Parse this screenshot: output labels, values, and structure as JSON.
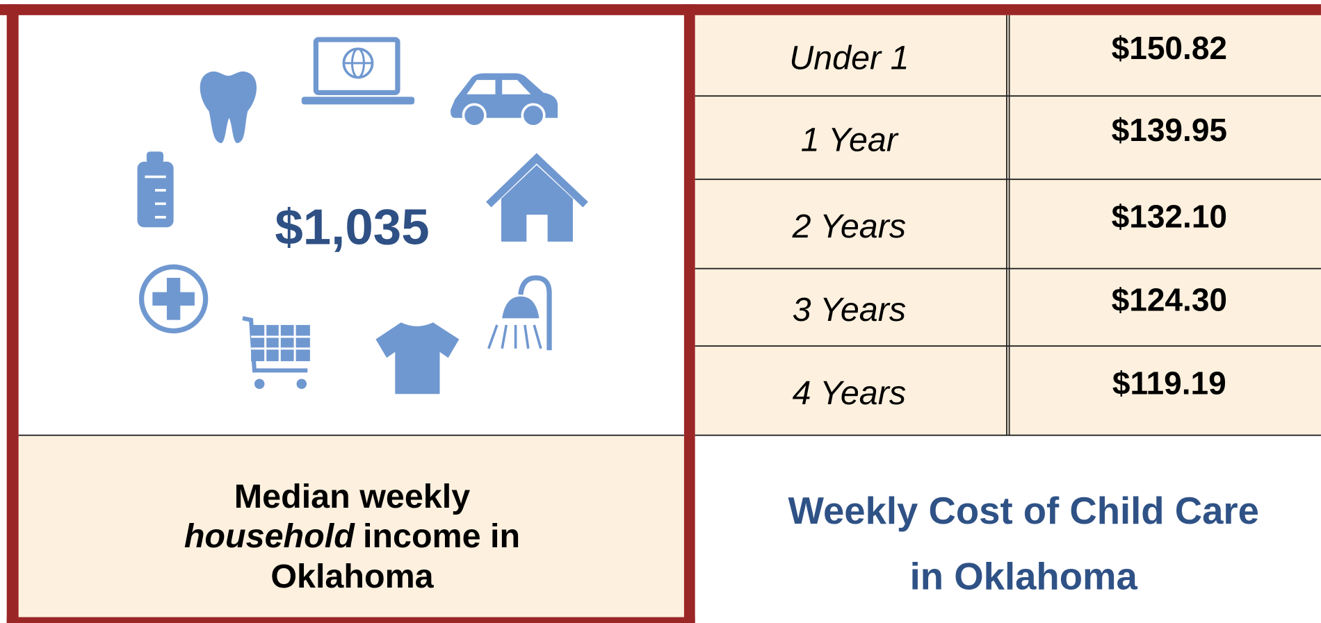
{
  "income": {
    "amount": "$1,035",
    "caption": [
      "Median weekly",
      "household",
      "income in",
      "Oklahoma"
    ]
  },
  "table": {
    "rows": [
      [
        "Under 1",
        "$150.82"
      ],
      [
        "1 Year",
        "$139.95"
      ],
      [
        "2 Years",
        "$132.10"
      ],
      [
        "3 Years",
        "$124.30"
      ],
      [
        "4 Years",
        "$119.19"
      ]
    ]
  },
  "title": [
    "Weekly Cost of Child Care",
    "in Oklahoma"
  ]
}
